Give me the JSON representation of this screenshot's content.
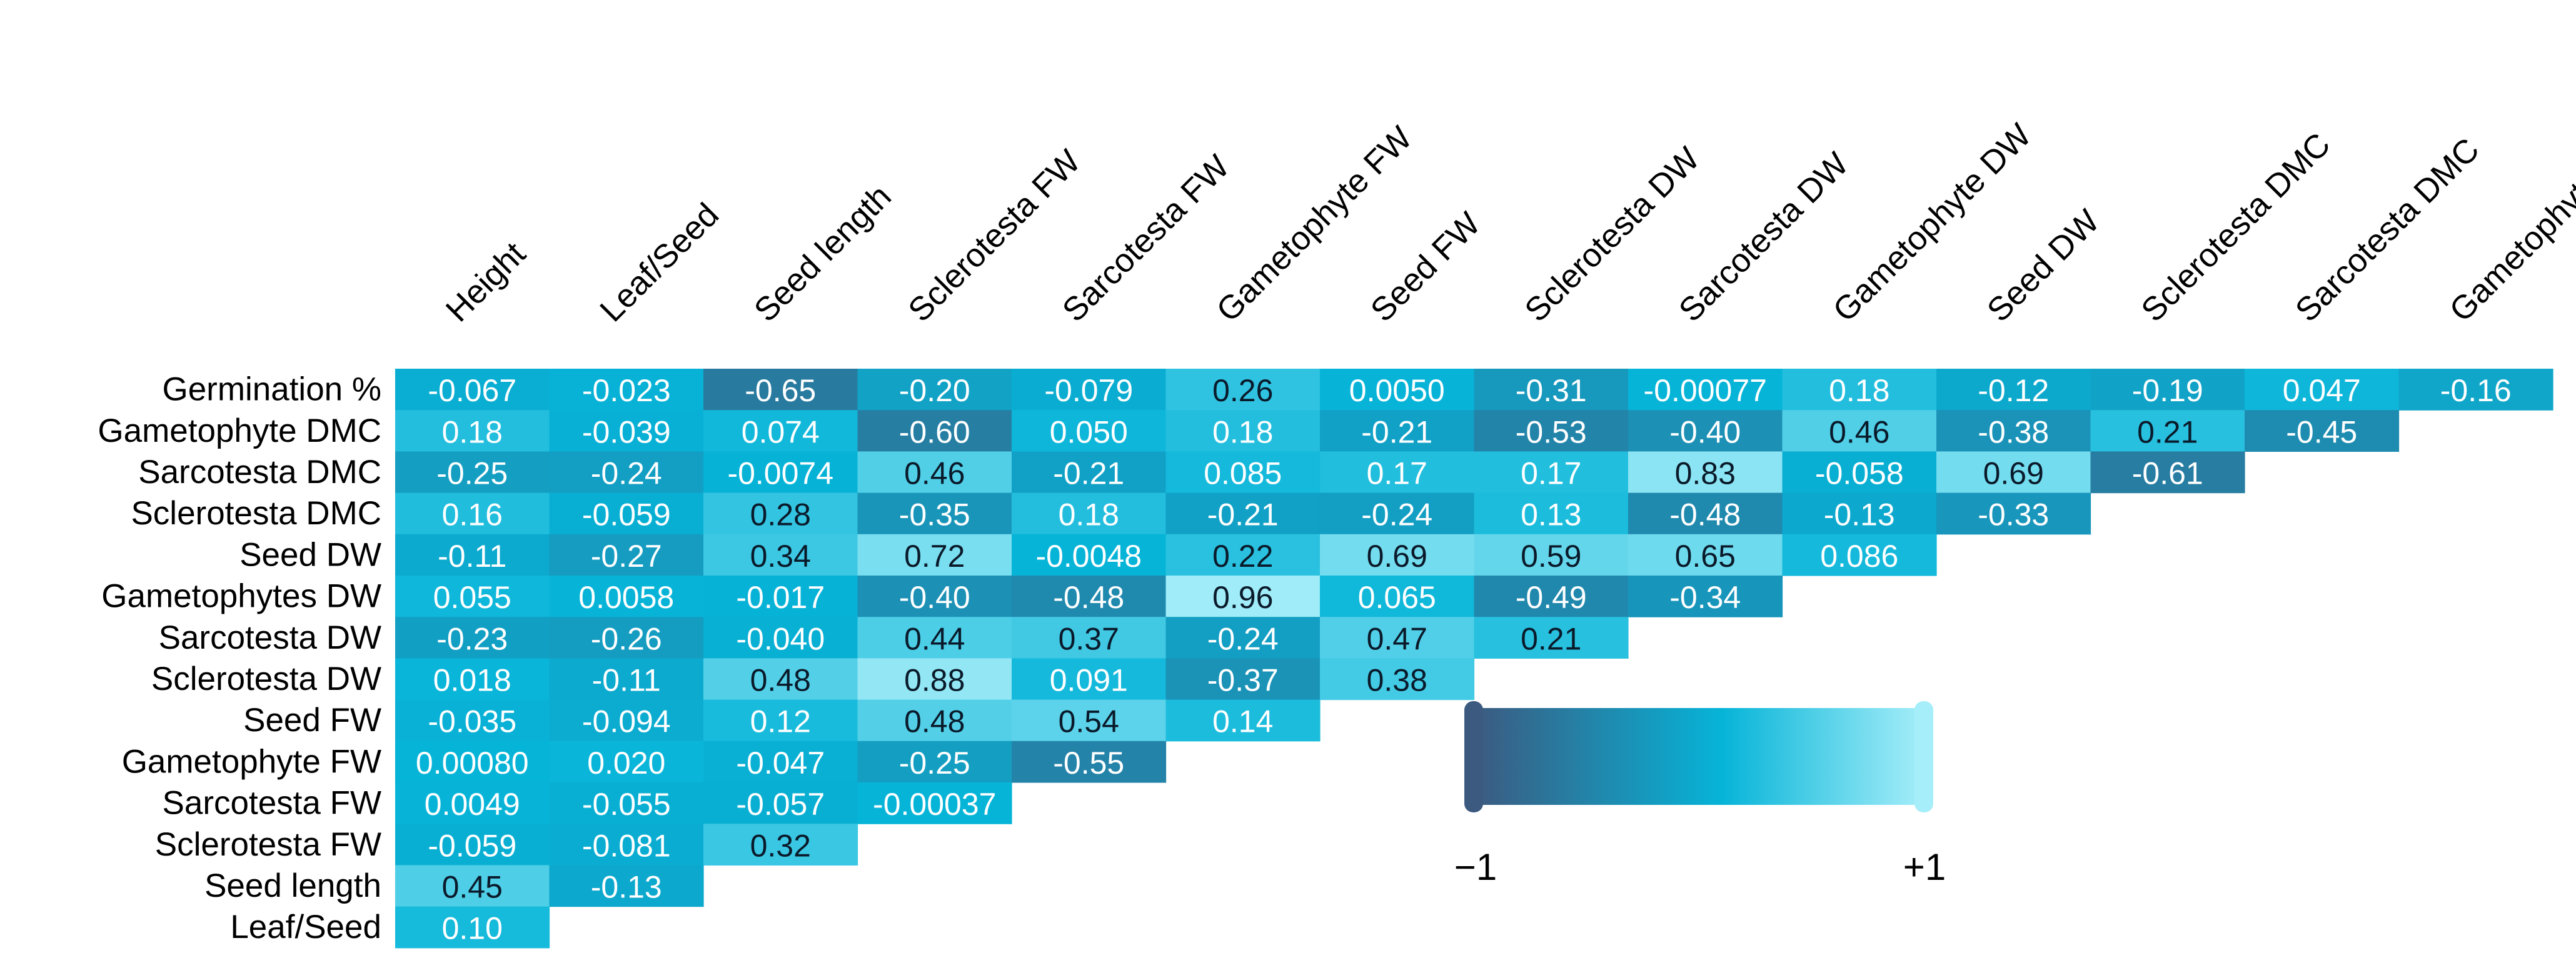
{
  "chart_data": {
    "type": "heatmap",
    "title": "",
    "columns": [
      "Height",
      "Leaf/Seed",
      "Seed length",
      "Sclerotesta FW",
      "Sarcotesta FW",
      "Gametophyte FW",
      "Seed FW",
      "Sclerotesta DW",
      "Sarcotesta DW",
      "Gametophyte DW",
      "Seed DW",
      "Sclerotesta DMC",
      "Sarcotesta DMC",
      "Gametophyte DMC"
    ],
    "rows": [
      {
        "label": "Germination %",
        "values": [
          "-0.067",
          "-0.023",
          "-0.65",
          "-0.20",
          "-0.079",
          "0.26",
          "0.0050",
          "-0.31",
          "-0.00077",
          "0.18",
          "-0.12",
          "-0.19",
          "0.047",
          "-0.16"
        ]
      },
      {
        "label": "Gametophyte DMC",
        "values": [
          "0.18",
          "-0.039",
          "0.074",
          "-0.60",
          "0.050",
          "0.18",
          "-0.21",
          "-0.53",
          "-0.40",
          "0.46",
          "-0.38",
          "0.21",
          "-0.45"
        ]
      },
      {
        "label": "Sarcotesta DMC",
        "values": [
          "-0.25",
          "-0.24",
          "-0.0074",
          "0.46",
          "-0.21",
          "0.085",
          "0.17",
          "0.17",
          "0.83",
          "-0.058",
          "0.69",
          "-0.61"
        ]
      },
      {
        "label": "Sclerotesta DMC",
        "values": [
          "0.16",
          "-0.059",
          "0.28",
          "-0.35",
          "0.18",
          "-0.21",
          "-0.24",
          "0.13",
          "-0.48",
          "-0.13",
          "-0.33"
        ]
      },
      {
        "label": "Seed DW",
        "values": [
          "-0.11",
          "-0.27",
          "0.34",
          "0.72",
          "-0.0048",
          "0.22",
          "0.69",
          "0.59",
          "0.65",
          "0.086"
        ]
      },
      {
        "label": "Gametophytes DW",
        "values": [
          "0.055",
          "0.0058",
          "-0.017",
          "-0.40",
          "-0.48",
          "0.96",
          "0.065",
          "-0.49",
          "-0.34"
        ]
      },
      {
        "label": "Sarcotesta DW",
        "values": [
          "-0.23",
          "-0.26",
          "-0.040",
          "0.44",
          "0.37",
          "-0.24",
          "0.47",
          "0.21"
        ]
      },
      {
        "label": "Sclerotesta DW",
        "values": [
          "0.018",
          "-0.11",
          "0.48",
          "0.88",
          "0.091",
          "-0.37",
          "0.38"
        ]
      },
      {
        "label": "Seed FW",
        "values": [
          "-0.035",
          "-0.094",
          "0.12",
          "0.48",
          "0.54",
          "0.14"
        ]
      },
      {
        "label": "Gametophyte FW",
        "values": [
          "0.00080",
          "0.020",
          "-0.047",
          "-0.25",
          "-0.55"
        ]
      },
      {
        "label": "Sarcotesta FW",
        "values": [
          "0.0049",
          "-0.055",
          "-0.057",
          "-0.00037"
        ]
      },
      {
        "label": "Sclerotesta FW",
        "values": [
          "-0.059",
          "-0.081",
          "0.32"
        ]
      },
      {
        "label": "Seed length",
        "values": [
          "0.45",
          "-0.13"
        ]
      },
      {
        "label": "Leaf/Seed",
        "values": [
          "0.10"
        ]
      }
    ],
    "color_scale": {
      "min": -1,
      "max": 1,
      "min_label": "−1",
      "max_label": "+1",
      "colors": [
        "#3c5a80",
        "#06b4d8",
        "#a6eef9"
      ]
    }
  }
}
